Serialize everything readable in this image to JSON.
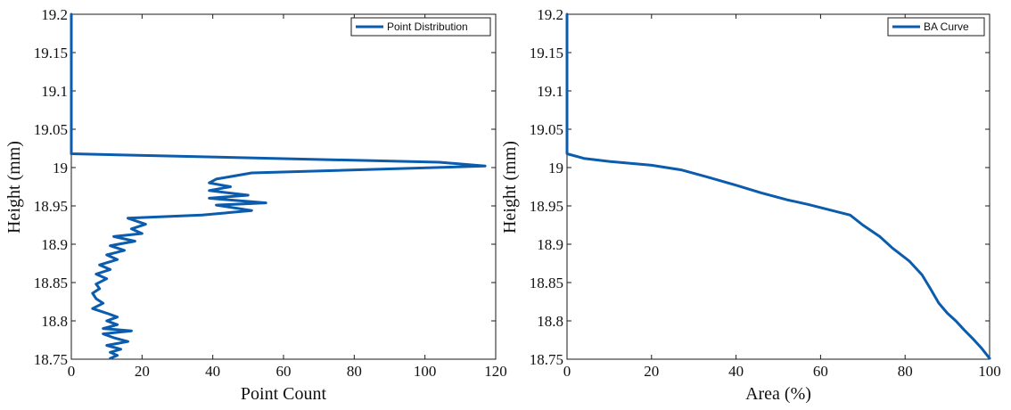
{
  "chart_data": [
    {
      "type": "line",
      "xlabel": "Point Count",
      "ylabel": "Height (mm)",
      "xlim": [
        0,
        120
      ],
      "ylim": [
        18.75,
        19.2
      ],
      "xticks": [
        "0",
        "20",
        "40",
        "60",
        "80",
        "100",
        "120"
      ],
      "yticks": [
        "18.75",
        "18.8",
        "18.85",
        "18.9",
        "18.95",
        "19",
        "19.05",
        "19.1",
        "19.15",
        "19.2"
      ],
      "grid": false,
      "legend_position": "top-right",
      "series": [
        {
          "name": "Point Distribution",
          "color": "#0b5cad",
          "x": [
            0,
            0,
            0,
            104,
            117,
            51,
            41,
            39,
            45,
            39,
            50,
            39,
            55,
            41,
            51,
            37,
            16,
            21,
            17,
            20,
            12,
            18,
            11,
            15,
            10,
            13,
            8,
            11,
            7,
            10,
            7,
            8,
            6,
            7,
            9,
            6,
            10,
            13,
            10,
            13,
            9,
            17,
            9,
            12,
            16,
            10,
            14,
            11,
            13,
            11
          ],
          "y": [
            19.2,
            19.1,
            19.018,
            19.007,
            19.002,
            18.993,
            18.985,
            18.98,
            18.975,
            18.97,
            18.964,
            18.96,
            18.954,
            18.951,
            18.944,
            18.938,
            18.934,
            18.926,
            18.92,
            18.914,
            18.91,
            18.904,
            18.898,
            18.892,
            18.886,
            18.88,
            18.873,
            18.867,
            18.861,
            18.855,
            18.848,
            18.842,
            18.836,
            18.829,
            18.823,
            18.816,
            18.81,
            18.805,
            18.8,
            18.795,
            18.79,
            18.787,
            18.783,
            18.778,
            18.773,
            18.768,
            18.763,
            18.759,
            18.755,
            18.751
          ]
        }
      ]
    },
    {
      "type": "line",
      "xlabel": "Area (%)",
      "ylabel": "Height (mm)",
      "xlim": [
        0,
        100
      ],
      "ylim": [
        18.75,
        19.2
      ],
      "xticks": [
        "0",
        "20",
        "40",
        "60",
        "80",
        "100"
      ],
      "yticks": [
        "18.75",
        "18.8",
        "18.85",
        "18.9",
        "18.95",
        "19",
        "19.05",
        "19.1",
        "19.15",
        "19.2"
      ],
      "grid": false,
      "legend_position": "top-right",
      "series": [
        {
          "name": "BA Curve",
          "color": "#0b5cad",
          "x": [
            0,
            0,
            0,
            4,
            10,
            20,
            27,
            33,
            40,
            46,
            52,
            57,
            62,
            67,
            70,
            74,
            77,
            81,
            84,
            86,
            88,
            90,
            92,
            94,
            96,
            98,
            100
          ],
          "y": [
            19.2,
            19.1,
            19.018,
            19.012,
            19.008,
            19.003,
            18.997,
            18.988,
            18.977,
            18.967,
            18.958,
            18.952,
            18.945,
            18.938,
            18.925,
            18.91,
            18.895,
            18.878,
            18.86,
            18.842,
            18.823,
            18.81,
            18.8,
            18.788,
            18.777,
            18.765,
            18.751
          ]
        }
      ]
    }
  ]
}
